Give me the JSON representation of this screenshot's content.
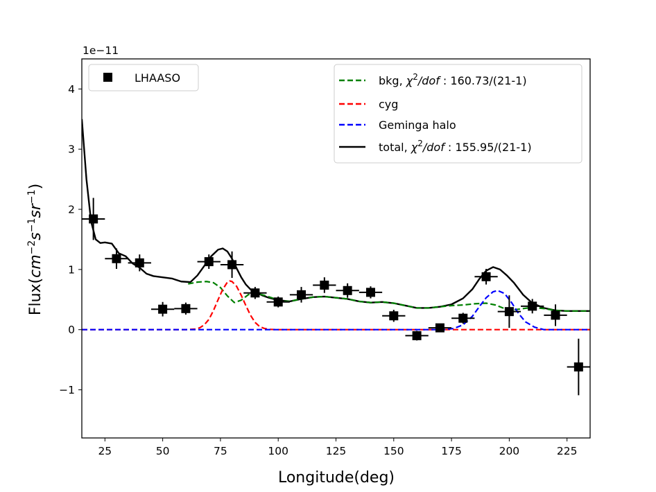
{
  "chart_data": {
    "type": "scatter",
    "xlabel": "Longitude(deg)",
    "ylabel_parts": [
      "Flux(",
      "cm",
      "−2",
      "s",
      "−1",
      "sr",
      "−1",
      ")"
    ],
    "offset_text": "1e−11",
    "xlim": [
      15,
      235
    ],
    "ylim": [
      -1.8,
      4.5
    ],
    "xticks": [
      25,
      50,
      75,
      100,
      125,
      150,
      175,
      200,
      225
    ],
    "yticks": [
      -1,
      0,
      1,
      2,
      3,
      4
    ],
    "series_points": {
      "name": "LHAASO",
      "color": "#000000",
      "x_err": 5,
      "points": [
        {
          "x": 20,
          "y": 1.84,
          "yerr": 0.35
        },
        {
          "x": 30,
          "y": 1.18,
          "yerr": 0.17
        },
        {
          "x": 40,
          "y": 1.11,
          "yerr": 0.14
        },
        {
          "x": 50,
          "y": 0.34,
          "yerr": 0.12
        },
        {
          "x": 60,
          "y": 0.35,
          "yerr": 0.1
        },
        {
          "x": 70,
          "y": 1.13,
          "yerr": 0.12
        },
        {
          "x": 80,
          "y": 1.08,
          "yerr": 0.22
        },
        {
          "x": 90,
          "y": 0.61,
          "yerr": 0.1
        },
        {
          "x": 100,
          "y": 0.46,
          "yerr": 0.09
        },
        {
          "x": 110,
          "y": 0.58,
          "yerr": 0.13
        },
        {
          "x": 120,
          "y": 0.74,
          "yerr": 0.13
        },
        {
          "x": 130,
          "y": 0.65,
          "yerr": 0.12
        },
        {
          "x": 140,
          "y": 0.62,
          "yerr": 0.1
        },
        {
          "x": 150,
          "y": 0.23,
          "yerr": 0.1
        },
        {
          "x": 160,
          "y": -0.1,
          "yerr": 0.08
        },
        {
          "x": 170,
          "y": 0.03,
          "yerr": 0.07
        },
        {
          "x": 180,
          "y": 0.19,
          "yerr": 0.09
        },
        {
          "x": 190,
          "y": 0.88,
          "yerr": 0.13
        },
        {
          "x": 200,
          "y": 0.3,
          "yerr": 0.27
        },
        {
          "x": 210,
          "y": 0.39,
          "yerr": 0.12
        },
        {
          "x": 220,
          "y": 0.24,
          "yerr": 0.18
        },
        {
          "x": 230,
          "y": -0.62,
          "yerr": 0.47
        }
      ]
    },
    "lines": [
      {
        "name": "bkg",
        "legend_prefix": "bkg, ",
        "legend_value": " : 160.73/(21-1)",
        "color": "#008000",
        "dashed": true,
        "x": [
          61,
          65,
          69,
          72,
          75,
          78,
          81,
          84,
          87,
          90,
          94,
          98,
          102,
          105,
          110,
          115,
          120,
          125,
          130,
          135,
          140,
          145,
          150,
          155,
          160,
          165,
          170,
          175,
          180,
          185,
          190,
          194,
          198,
          202,
          206,
          210,
          215,
          220,
          225,
          230,
          235
        ],
        "y": [
          0.76,
          0.79,
          0.8,
          0.78,
          0.7,
          0.56,
          0.45,
          0.49,
          0.58,
          0.61,
          0.57,
          0.52,
          0.47,
          0.47,
          0.51,
          0.54,
          0.55,
          0.53,
          0.51,
          0.47,
          0.45,
          0.46,
          0.44,
          0.4,
          0.36,
          0.36,
          0.38,
          0.4,
          0.41,
          0.43,
          0.44,
          0.41,
          0.35,
          0.33,
          0.35,
          0.37,
          0.35,
          0.32,
          0.31,
          0.31,
          0.31
        ]
      },
      {
        "name": "cyg",
        "legend_prefix": "cyg",
        "legend_value": "",
        "color": "#ff0000",
        "dashed": true,
        "x": [
          15,
          60,
          64,
          66,
          68,
          70,
          72,
          74,
          76,
          78,
          79,
          80,
          82,
          84,
          86,
          88,
          90,
          92,
          94,
          96,
          100,
          235
        ],
        "y": [
          0,
          0,
          0.01,
          0.03,
          0.08,
          0.17,
          0.32,
          0.5,
          0.67,
          0.79,
          0.81,
          0.8,
          0.72,
          0.57,
          0.4,
          0.24,
          0.12,
          0.05,
          0.02,
          0.005,
          0,
          0
        ]
      },
      {
        "name": "Geminga halo",
        "legend_prefix": "Geminga halo",
        "legend_value": "",
        "color": "#0000ff",
        "dashed": true,
        "x": [
          15,
          172,
          176,
          180,
          184,
          187,
          190,
          193,
          195,
          198,
          201,
          204,
          207,
          211,
          215,
          235
        ],
        "y": [
          0,
          0,
          0.02,
          0.08,
          0.22,
          0.38,
          0.53,
          0.63,
          0.65,
          0.6,
          0.45,
          0.27,
          0.13,
          0.04,
          0,
          0
        ]
      },
      {
        "name": "total",
        "legend_prefix": "total, ",
        "legend_value": " : 155.95/(21-1)",
        "color": "#000000",
        "dashed": false,
        "x": [
          15,
          17,
          19,
          21,
          23,
          25,
          28,
          31,
          34,
          37,
          40,
          43,
          46,
          50,
          54,
          58,
          62,
          65,
          68,
          71,
          74,
          76,
          78,
          80,
          82,
          84,
          86,
          88,
          90,
          93,
          96,
          100,
          105,
          110,
          115,
          120,
          125,
          130,
          135,
          140,
          145,
          150,
          155,
          160,
          165,
          170,
          175,
          180,
          184,
          187,
          190,
          193,
          196,
          199,
          202,
          206,
          210,
          215,
          220,
          225,
          230,
          235
        ],
        "y": [
          3.5,
          2.5,
          1.8,
          1.5,
          1.44,
          1.45,
          1.43,
          1.27,
          1.22,
          1.1,
          1.03,
          0.93,
          0.89,
          0.87,
          0.85,
          0.8,
          0.79,
          0.9,
          1.06,
          1.22,
          1.33,
          1.35,
          1.3,
          1.18,
          1.02,
          0.87,
          0.75,
          0.67,
          0.63,
          0.57,
          0.53,
          0.49,
          0.47,
          0.51,
          0.54,
          0.55,
          0.53,
          0.51,
          0.47,
          0.45,
          0.46,
          0.44,
          0.4,
          0.36,
          0.36,
          0.38,
          0.42,
          0.52,
          0.67,
          0.84,
          0.98,
          1.04,
          1.0,
          0.9,
          0.78,
          0.58,
          0.44,
          0.36,
          0.32,
          0.31,
          0.31,
          0.31
        ]
      }
    ],
    "legend_left": {
      "placement": "upper-left",
      "label": "LHAASO"
    },
    "legend_right": {
      "placement": "upper-right"
    },
    "chi_symbol": "χ",
    "chi_exp": "2",
    "dof_text": "/dof"
  }
}
